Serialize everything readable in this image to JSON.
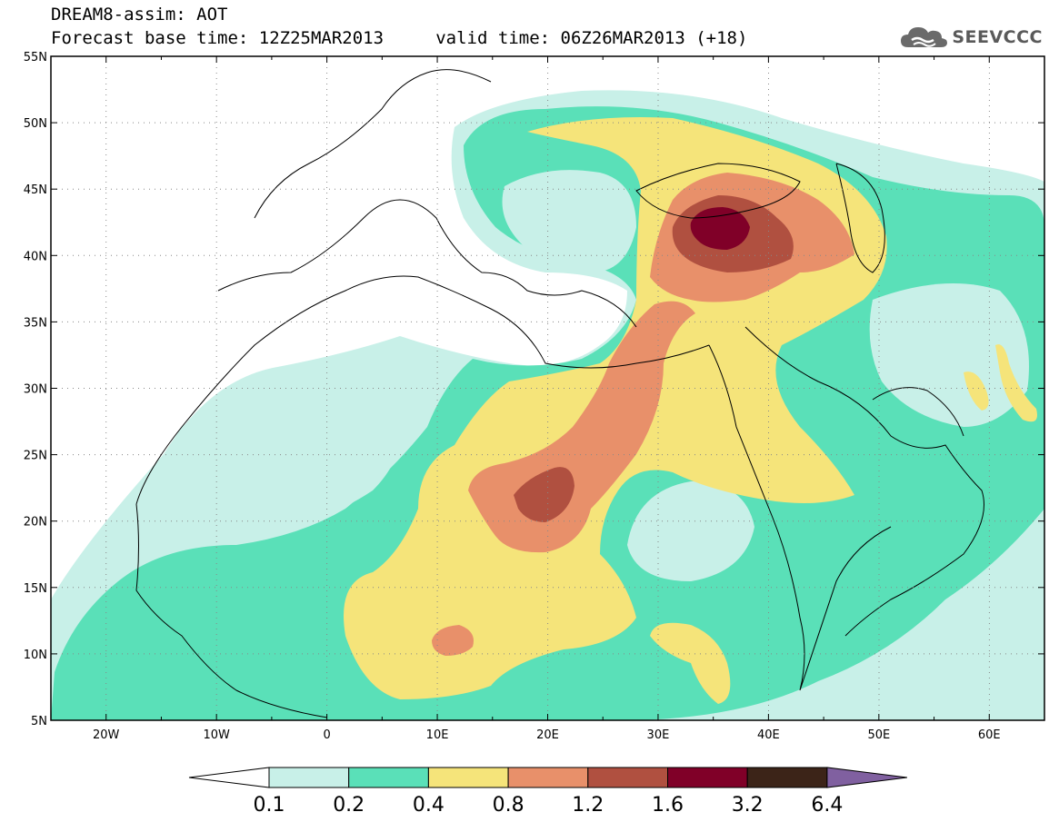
{
  "header": {
    "line1": "DREAM8-assim: AOT",
    "line2": "Forecast base time: 12Z25MAR2013     valid time: 06Z26MAR2013 (+18)",
    "brand": "SEEVCCC",
    "brand_icon": "cloud-logo-icon"
  },
  "axes": {
    "lat_labels": [
      "55N",
      "50N",
      "45N",
      "40N",
      "35N",
      "30N",
      "25N",
      "20N",
      "15N",
      "10N",
      "5N"
    ],
    "lat_values": [
      55,
      50,
      45,
      40,
      35,
      30,
      25,
      20,
      15,
      10,
      5
    ],
    "lon_labels": [
      "20W",
      "10W",
      "0",
      "10E",
      "20E",
      "30E",
      "40E",
      "50E",
      "60E"
    ],
    "lon_values": [
      -20,
      -10,
      0,
      10,
      20,
      30,
      40,
      50,
      60
    ],
    "lon_range": [
      -25,
      65
    ],
    "lat_range": [
      5,
      55
    ]
  },
  "colorbar": {
    "labels": [
      "0.1",
      "0.2",
      "0.4",
      "0.8",
      "1.2",
      "1.6",
      "3.2",
      "6.4"
    ],
    "colors": [
      "#ffffff",
      "#c8f0e8",
      "#5ae0b8",
      "#f5e47a",
      "#e8906a",
      "#b05040",
      "#800028",
      "#3c2418",
      "#8060a0"
    ]
  },
  "colors": {
    "c01": "#c8f0e8",
    "c02": "#5ae0b8",
    "c04": "#f5e47a",
    "c08": "#e8906a",
    "c12": "#b05040",
    "c16": "#800028"
  }
}
